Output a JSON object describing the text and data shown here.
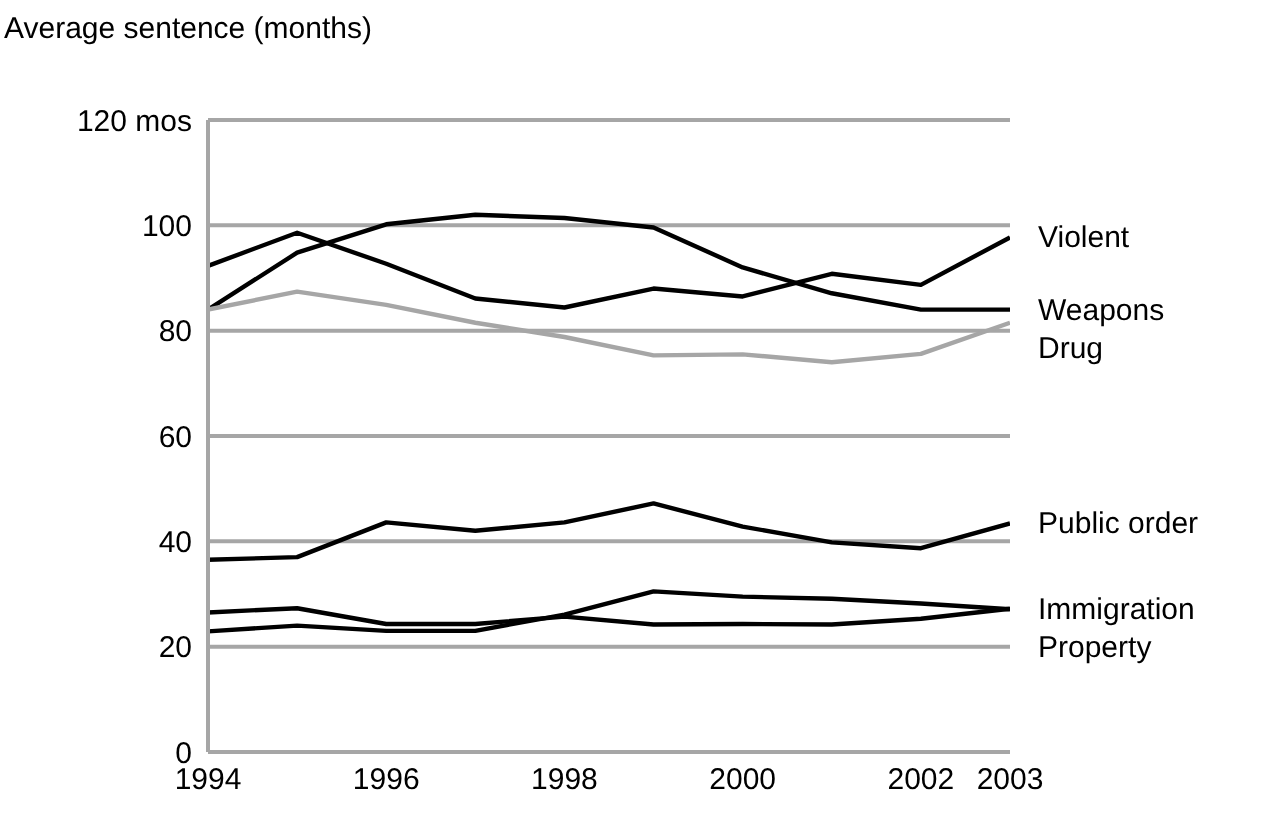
{
  "chart_data": {
    "type": "line",
    "ylabel": "Average sentence (months)",
    "x": [
      1994,
      1995,
      1996,
      1997,
      1998,
      1999,
      2000,
      2001,
      2002,
      2003
    ],
    "xlim": [
      1994,
      2003
    ],
    "xticks": [
      1994,
      1996,
      1998,
      2000,
      2002,
      2003
    ],
    "ylim": [
      0,
      120
    ],
    "yticks": [
      0,
      20,
      40,
      60,
      80,
      100,
      {
        "value": 120,
        "label": "120 mos"
      }
    ],
    "grid": "y",
    "legend": false,
    "marker": "none",
    "line_style": "solid",
    "series": [
      {
        "name": "Violent",
        "color": "#000000",
        "values": [
          92.3,
          98.6,
          92.7,
          86.1,
          84.4,
          88,
          86.5,
          90.8,
          88.7,
          97.7
        ]
      },
      {
        "name": "Weapons",
        "color": "#000000",
        "values": [
          84,
          94.8,
          100.2,
          102,
          101.4,
          99.6,
          92,
          87.1,
          84,
          84
        ]
      },
      {
        "name": "Drug",
        "color": "#a6a6a6",
        "values": [
          84,
          87.4,
          84.9,
          81.5,
          78.8,
          75.3,
          75.5,
          74,
          75.6,
          81.5
        ]
      },
      {
        "name": "Public order",
        "color": "#000000",
        "values": [
          36.5,
          37,
          43.6,
          42,
          43.6,
          47.2,
          42.8,
          39.8,
          38.7,
          43.4
        ]
      },
      {
        "name": "Immigration",
        "color": "#000000",
        "values": [
          22.9,
          24,
          23,
          23,
          26.1,
          30.5,
          29.5,
          29.1,
          28.2,
          27.1
        ]
      },
      {
        "name": "Property",
        "color": "#000000",
        "values": [
          26.5,
          27.3,
          24.3,
          24.3,
          25.7,
          24.2,
          24.3,
          24.2,
          25.3,
          27.2
        ]
      }
    ]
  }
}
